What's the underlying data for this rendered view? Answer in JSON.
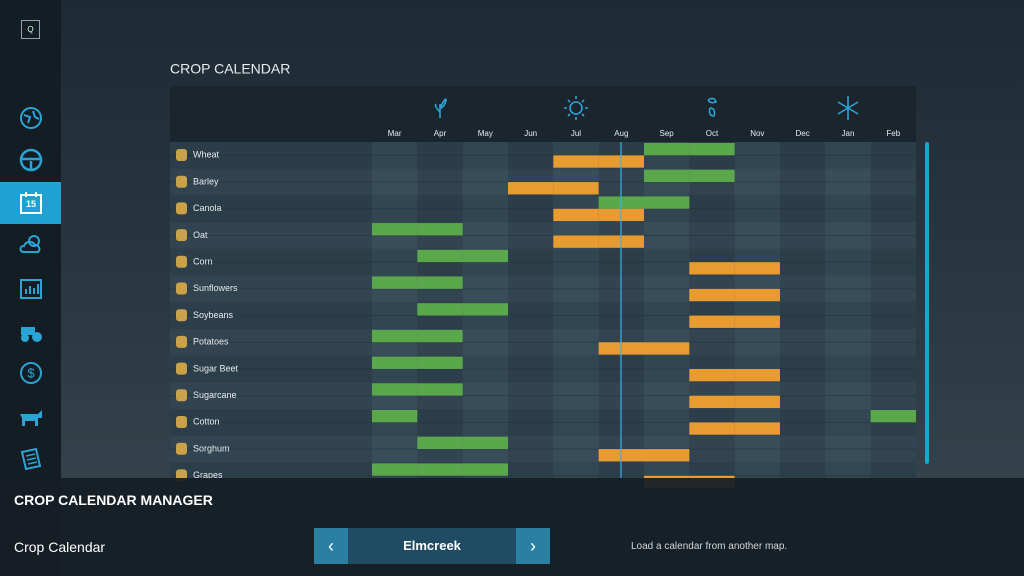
{
  "sidebar": {
    "key": "Q"
  },
  "header": {
    "title": "CROP CALENDAR"
  },
  "calendar": {
    "months": [
      "Mar",
      "Apr",
      "May",
      "Jun",
      "Jul",
      "Aug",
      "Sep",
      "Oct",
      "Nov",
      "Dec",
      "Jan",
      "Feb"
    ],
    "crops": [
      {
        "name": "Wheat",
        "plant": [
          6,
          7
        ],
        "harvest": [
          4,
          5
        ]
      },
      {
        "name": "Barley",
        "plant": [
          6,
          7
        ],
        "harvest": [
          3,
          4
        ]
      },
      {
        "name": "Canola",
        "plant": [
          5,
          6
        ],
        "harvest": [
          4,
          5
        ]
      },
      {
        "name": "Oat",
        "plant": [
          0,
          1
        ],
        "harvest": [
          4,
          5
        ]
      },
      {
        "name": "Corn",
        "plant": [
          1,
          2
        ],
        "harvest": [
          7,
          8
        ]
      },
      {
        "name": "Sunflowers",
        "plant": [
          0,
          1
        ],
        "harvest": [
          7,
          8
        ]
      },
      {
        "name": "Soybeans",
        "plant": [
          1,
          2
        ],
        "harvest": [
          7,
          8
        ]
      },
      {
        "name": "Potatoes",
        "plant": [
          0,
          1
        ],
        "harvest": [
          5,
          6
        ]
      },
      {
        "name": "Sugar Beet",
        "plant": [
          0,
          1
        ],
        "harvest": [
          7,
          8
        ]
      },
      {
        "name": "Sugarcane",
        "plant": [
          0,
          1
        ],
        "harvest": [
          7,
          8
        ]
      },
      {
        "name": "Cotton",
        "plant": [
          0,
          11
        ],
        "harvest": [
          7,
          8
        ]
      },
      {
        "name": "Sorghum",
        "plant": [
          1,
          2
        ],
        "harvest": [
          5,
          6
        ]
      },
      {
        "name": "Grapes",
        "plant": [
          0,
          1,
          2
        ],
        "harvest": [
          6,
          7
        ]
      }
    ]
  },
  "footer": {
    "title": "CROP CALENDAR MANAGER",
    "setting": "Crop Calendar",
    "value": "Elmcreek",
    "help": "Load a calendar from another map."
  }
}
